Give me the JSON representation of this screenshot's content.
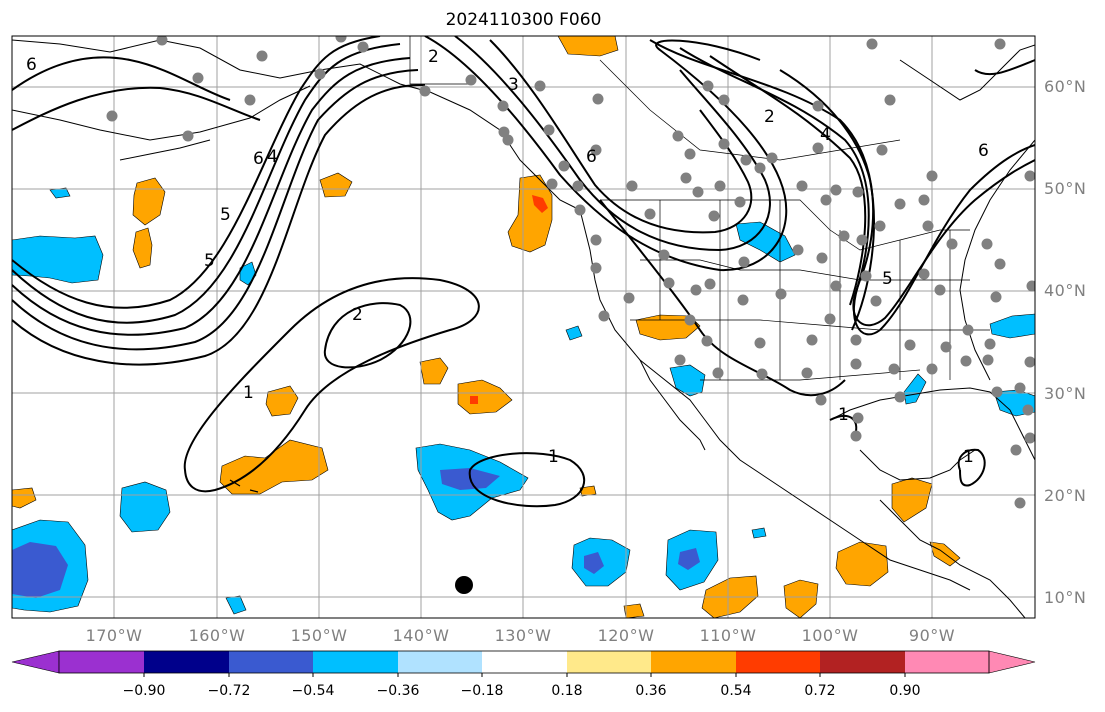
{
  "title": "2024110300 F060",
  "lat_labels": [
    "60°N",
    "50°N",
    "40°N",
    "30°N",
    "20°N",
    "10°N"
  ],
  "lon_labels": [
    "170°W",
    "160°W",
    "150°W",
    "140°W",
    "130°W",
    "120°W",
    "110°W",
    "100°W",
    "90°W"
  ],
  "contour_labels": [
    "6",
    "6",
    "5",
    "5",
    "4",
    "2",
    "1",
    "1",
    "1",
    "2",
    "3",
    "4",
    "5",
    "6",
    "6",
    "2",
    "1"
  ],
  "colorbar": {
    "ticks": [
      "−0.90",
      "−0.72",
      "−0.54",
      "−0.36",
      "−0.18",
      "0.18",
      "0.36",
      "0.54",
      "0.72",
      "0.90"
    ],
    "colors": [
      "#9b30d0",
      "#00008b",
      "#3a5ad0",
      "#00bfff",
      "#b0e2ff",
      "#ffffff",
      "#ffe98a",
      "#ffa500",
      "#ff3c00",
      "#b22222",
      "#ff89b4"
    ]
  },
  "colors": {
    "grid": "#a0a0a0",
    "coast": "#000000",
    "stations": "#808080",
    "marker": "#000000"
  }
}
